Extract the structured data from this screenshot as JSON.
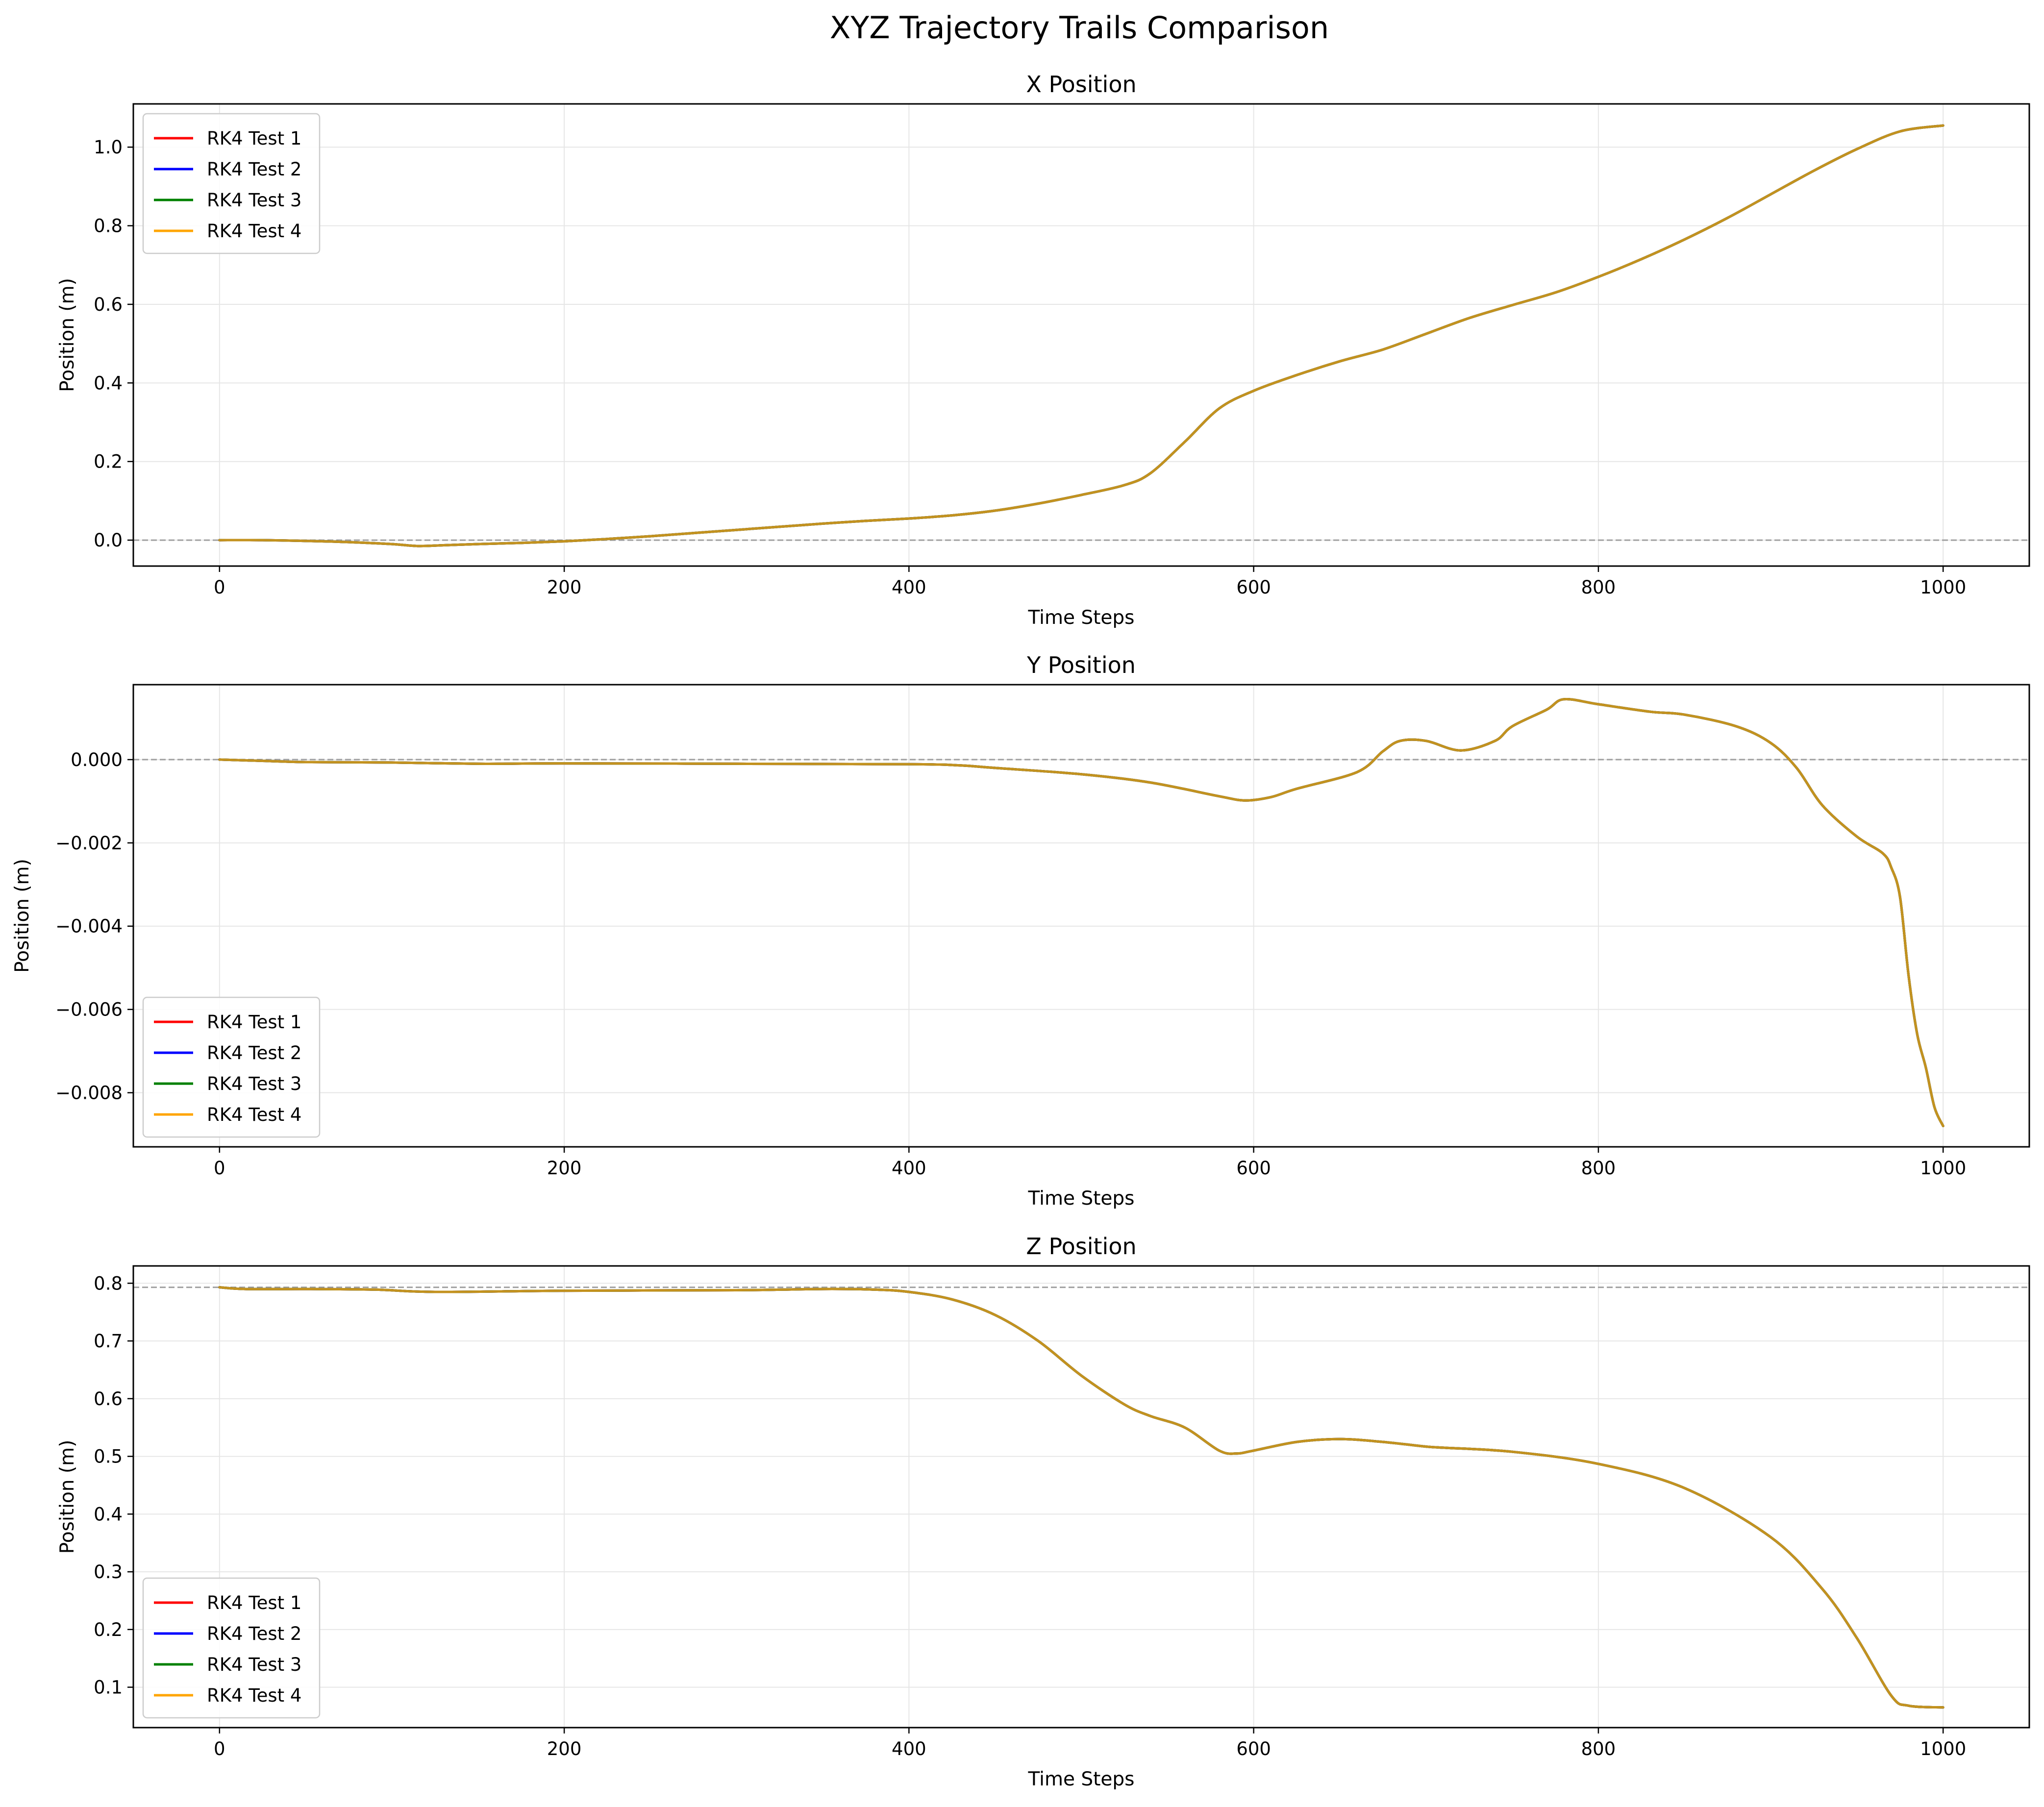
{
  "suptitle": "XYZ Trajectory Trails Comparison",
  "colors": {
    "RK4 Test 1": "#ff0000",
    "RK4 Test 2": "#0000ff",
    "RK4 Test 3": "#008000",
    "RK4 Test 4": "#ffa500",
    "visible_overlap": "#c3921f",
    "reference_line": "#a0a0a0",
    "grid": "#e6e6e6"
  },
  "chart_data": [
    {
      "type": "line",
      "title": "X Position",
      "xlabel": "Time Steps",
      "ylabel": "Position (m)",
      "xlim": [
        -50,
        1050
      ],
      "ylim": [
        -0.066,
        1.11
      ],
      "xticks": [
        0,
        200,
        400,
        600,
        800,
        1000
      ],
      "yticks": [
        0.0,
        0.2,
        0.4,
        0.6,
        0.8,
        1.0
      ],
      "ytick_labels": [
        "0.0",
        "0.2",
        "0.4",
        "0.6",
        "0.8",
        "1.0"
      ],
      "reference_line": 0.0,
      "grid": true,
      "legend": "upper left",
      "legend_entries": [
        "RK4 Test 1",
        "RK4 Test 2",
        "RK4 Test 3",
        "RK4 Test 4"
      ],
      "x": [
        0,
        25,
        50,
        75,
        100,
        115,
        130,
        150,
        175,
        200,
        225,
        250,
        275,
        300,
        325,
        350,
        375,
        400,
        425,
        450,
        475,
        500,
        525,
        540,
        560,
        580,
        600,
        625,
        650,
        675,
        700,
        725,
        750,
        775,
        800,
        825,
        850,
        875,
        900,
        925,
        950,
        975,
        1000
      ],
      "series": [
        {
          "name": "RK4 Test 1",
          "values": [
            0.0,
            0.0,
            -0.002,
            -0.005,
            -0.01,
            -0.015,
            -0.013,
            -0.01,
            -0.007,
            -0.003,
            0.003,
            0.01,
            0.018,
            0.026,
            0.034,
            0.042,
            0.049,
            0.055,
            0.063,
            0.075,
            0.093,
            0.115,
            0.14,
            0.17,
            0.25,
            0.335,
            0.38,
            0.42,
            0.455,
            0.485,
            0.525,
            0.565,
            0.598,
            0.63,
            0.67,
            0.715,
            0.765,
            0.82,
            0.88,
            0.94,
            0.995,
            1.04,
            1.055
          ]
        },
        {
          "name": "RK4 Test 2",
          "values": [
            0.0,
            0.0,
            -0.002,
            -0.005,
            -0.01,
            -0.015,
            -0.013,
            -0.01,
            -0.007,
            -0.003,
            0.003,
            0.01,
            0.018,
            0.026,
            0.034,
            0.042,
            0.049,
            0.055,
            0.063,
            0.075,
            0.093,
            0.115,
            0.14,
            0.17,
            0.25,
            0.335,
            0.38,
            0.42,
            0.455,
            0.485,
            0.525,
            0.565,
            0.598,
            0.63,
            0.67,
            0.715,
            0.765,
            0.82,
            0.88,
            0.94,
            0.995,
            1.04,
            1.055
          ]
        },
        {
          "name": "RK4 Test 3",
          "values": [
            0.0,
            0.0,
            -0.002,
            -0.005,
            -0.01,
            -0.015,
            -0.013,
            -0.01,
            -0.007,
            -0.003,
            0.003,
            0.01,
            0.018,
            0.026,
            0.034,
            0.042,
            0.049,
            0.055,
            0.063,
            0.075,
            0.093,
            0.115,
            0.14,
            0.17,
            0.25,
            0.335,
            0.38,
            0.42,
            0.455,
            0.485,
            0.525,
            0.565,
            0.598,
            0.63,
            0.67,
            0.715,
            0.765,
            0.82,
            0.88,
            0.94,
            0.995,
            1.04,
            1.055
          ]
        },
        {
          "name": "RK4 Test 4",
          "values": [
            0.0,
            0.0,
            -0.002,
            -0.005,
            -0.01,
            -0.015,
            -0.013,
            -0.01,
            -0.007,
            -0.003,
            0.003,
            0.01,
            0.018,
            0.026,
            0.034,
            0.042,
            0.049,
            0.055,
            0.063,
            0.075,
            0.093,
            0.115,
            0.14,
            0.17,
            0.25,
            0.335,
            0.38,
            0.42,
            0.455,
            0.485,
            0.525,
            0.565,
            0.598,
            0.63,
            0.67,
            0.715,
            0.765,
            0.82,
            0.88,
            0.94,
            0.995,
            1.04,
            1.055
          ]
        }
      ]
    },
    {
      "type": "line",
      "title": "Y Position",
      "xlabel": "Time Steps",
      "ylabel": "Position (m)",
      "xlim": [
        -50,
        1050
      ],
      "ylim": [
        -0.0093,
        0.0018
      ],
      "xticks": [
        0,
        200,
        400,
        600,
        800,
        1000
      ],
      "yticks": [
        0.0,
        -0.002,
        -0.004,
        -0.006,
        -0.008
      ],
      "ytick_labels": [
        "0.000",
        "−0.002",
        "−0.004",
        "−0.006",
        "−0.008"
      ],
      "reference_line": 0.0,
      "grid": true,
      "legend": "lower left",
      "legend_entries": [
        "RK4 Test 1",
        "RK4 Test 2",
        "RK4 Test 3",
        "RK4 Test 4"
      ],
      "x": [
        0,
        25,
        50,
        100,
        150,
        200,
        300,
        400,
        430,
        450,
        500,
        540,
        580,
        595,
        610,
        625,
        660,
        675,
        685,
        700,
        720,
        740,
        750,
        770,
        780,
        800,
        830,
        850,
        880,
        900,
        915,
        930,
        950,
        965,
        970,
        975,
        980,
        985,
        990,
        995,
        1000
      ],
      "series": [
        {
          "name": "RK4 Test 1",
          "values": [
            0.0,
            -3e-05,
            -6e-05,
            -7e-05,
            -0.0001,
            -9e-05,
            -0.0001,
            -0.00011,
            -0.00014,
            -0.0002,
            -0.00035,
            -0.00055,
            -0.00088,
            -0.00098,
            -0.0009,
            -0.0007,
            -0.0003,
            0.0002,
            0.00045,
            0.00045,
            0.00022,
            0.00045,
            0.0008,
            0.0012,
            0.00145,
            0.00133,
            0.00115,
            0.00108,
            0.0008,
            0.0004,
            -0.0002,
            -0.0011,
            -0.00185,
            -0.00225,
            -0.0026,
            -0.0033,
            -0.0052,
            -0.0066,
            -0.0074,
            -0.00835,
            -0.0088
          ]
        },
        {
          "name": "RK4 Test 2",
          "values": [
            0.0,
            -3e-05,
            -6e-05,
            -7e-05,
            -0.0001,
            -9e-05,
            -0.0001,
            -0.00011,
            -0.00014,
            -0.0002,
            -0.00035,
            -0.00055,
            -0.00088,
            -0.00098,
            -0.0009,
            -0.0007,
            -0.0003,
            0.0002,
            0.00045,
            0.00045,
            0.00022,
            0.00045,
            0.0008,
            0.0012,
            0.00145,
            0.00133,
            0.00115,
            0.00108,
            0.0008,
            0.0004,
            -0.0002,
            -0.0011,
            -0.00185,
            -0.00225,
            -0.0026,
            -0.0033,
            -0.0052,
            -0.0066,
            -0.0074,
            -0.00835,
            -0.0088
          ]
        },
        {
          "name": "RK4 Test 3",
          "values": [
            0.0,
            -3e-05,
            -6e-05,
            -7e-05,
            -0.0001,
            -9e-05,
            -0.0001,
            -0.00011,
            -0.00014,
            -0.0002,
            -0.00035,
            -0.00055,
            -0.00088,
            -0.00098,
            -0.0009,
            -0.0007,
            -0.0003,
            0.0002,
            0.00045,
            0.00045,
            0.00022,
            0.00045,
            0.0008,
            0.0012,
            0.00145,
            0.00133,
            0.00115,
            0.00108,
            0.0008,
            0.0004,
            -0.0002,
            -0.0011,
            -0.00185,
            -0.00225,
            -0.0026,
            -0.0033,
            -0.0052,
            -0.0066,
            -0.0074,
            -0.00835,
            -0.0088
          ]
        },
        {
          "name": "RK4 Test 4",
          "values": [
            0.0,
            -3e-05,
            -6e-05,
            -7e-05,
            -0.0001,
            -9e-05,
            -0.0001,
            -0.00011,
            -0.00014,
            -0.0002,
            -0.00035,
            -0.00055,
            -0.00088,
            -0.00098,
            -0.0009,
            -0.0007,
            -0.0003,
            0.0002,
            0.00045,
            0.00045,
            0.00022,
            0.00045,
            0.0008,
            0.0012,
            0.00145,
            0.00133,
            0.00115,
            0.00108,
            0.0008,
            0.0004,
            -0.0002,
            -0.0011,
            -0.00185,
            -0.00225,
            -0.0026,
            -0.0033,
            -0.0052,
            -0.0066,
            -0.0074,
            -0.00835,
            -0.0088
          ]
        }
      ]
    },
    {
      "type": "line",
      "title": "Z Position",
      "xlabel": "Time Steps",
      "ylabel": "Position (m)",
      "xlim": [
        -50,
        1050
      ],
      "ylim": [
        0.03,
        0.83
      ],
      "xticks": [
        0,
        200,
        400,
        600,
        800,
        1000
      ],
      "yticks": [
        0.1,
        0.2,
        0.3,
        0.4,
        0.5,
        0.6,
        0.7,
        0.8
      ],
      "ytick_labels": [
        "0.1",
        "0.2",
        "0.3",
        "0.4",
        "0.5",
        "0.6",
        "0.7",
        "0.8"
      ],
      "reference_line": 0.793,
      "grid": true,
      "legend": "lower left",
      "legend_entries": [
        "RK4 Test 1",
        "RK4 Test 2",
        "RK4 Test 3",
        "RK4 Test 4"
      ],
      "x": [
        0,
        15,
        50,
        90,
        125,
        200,
        300,
        350,
        380,
        400,
        425,
        450,
        475,
        500,
        525,
        540,
        560,
        580,
        590,
        600,
        625,
        650,
        675,
        700,
        710,
        750,
        800,
        850,
        900,
        930,
        950,
        970,
        980,
        1000
      ],
      "series": [
        {
          "name": "RK4 Test 1",
          "values": [
            0.793,
            0.79,
            0.79,
            0.789,
            0.785,
            0.787,
            0.788,
            0.79,
            0.789,
            0.785,
            0.772,
            0.745,
            0.7,
            0.64,
            0.59,
            0.57,
            0.55,
            0.51,
            0.505,
            0.51,
            0.525,
            0.53,
            0.525,
            0.517,
            0.515,
            0.508,
            0.487,
            0.445,
            0.36,
            0.27,
            0.185,
            0.085,
            0.068,
            0.065
          ]
        },
        {
          "name": "RK4 Test 2",
          "values": [
            0.793,
            0.79,
            0.79,
            0.789,
            0.785,
            0.787,
            0.788,
            0.79,
            0.789,
            0.785,
            0.772,
            0.745,
            0.7,
            0.64,
            0.59,
            0.57,
            0.55,
            0.51,
            0.505,
            0.51,
            0.525,
            0.53,
            0.525,
            0.517,
            0.515,
            0.508,
            0.487,
            0.445,
            0.36,
            0.27,
            0.185,
            0.085,
            0.068,
            0.065
          ]
        },
        {
          "name": "RK4 Test 3",
          "values": [
            0.793,
            0.79,
            0.79,
            0.789,
            0.785,
            0.787,
            0.788,
            0.79,
            0.789,
            0.785,
            0.772,
            0.745,
            0.7,
            0.64,
            0.59,
            0.57,
            0.55,
            0.51,
            0.505,
            0.51,
            0.525,
            0.53,
            0.525,
            0.517,
            0.515,
            0.508,
            0.487,
            0.445,
            0.36,
            0.27,
            0.185,
            0.085,
            0.068,
            0.065
          ]
        },
        {
          "name": "RK4 Test 4",
          "values": [
            0.793,
            0.79,
            0.79,
            0.789,
            0.785,
            0.787,
            0.788,
            0.79,
            0.789,
            0.785,
            0.772,
            0.745,
            0.7,
            0.64,
            0.59,
            0.57,
            0.55,
            0.51,
            0.505,
            0.51,
            0.525,
            0.53,
            0.525,
            0.517,
            0.515,
            0.508,
            0.487,
            0.445,
            0.36,
            0.27,
            0.185,
            0.085,
            0.068,
            0.065
          ]
        }
      ]
    }
  ]
}
